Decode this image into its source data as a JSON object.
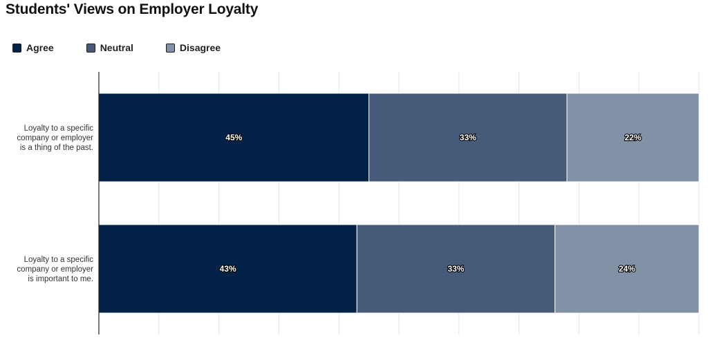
{
  "chart_data": {
    "type": "bar",
    "orientation": "horizontal",
    "stacked": "percent",
    "title": "Students' Views on Employer Loyalty",
    "categories": [
      "Loyalty to a specific company or employer is a thing of the past.",
      "Loyalty to a specific company or employer is important to me."
    ],
    "category_lines": [
      [
        "Loyalty to a specific",
        "company or employer",
        "is a thing of the past."
      ],
      [
        "Loyalty to a specific",
        "company or employer",
        "is important to me."
      ]
    ],
    "series": [
      {
        "name": "Agree",
        "values": [
          45,
          43
        ],
        "labels": [
          "45%",
          "43%"
        ],
        "color": "#022248"
      },
      {
        "name": "Neutral",
        "values": [
          33,
          33
        ],
        "labels": [
          "33%",
          "33%"
        ],
        "color": "#465a7a"
      },
      {
        "name": "Disagree",
        "values": [
          22,
          24
        ],
        "labels": [
          "22%",
          "24%"
        ],
        "color": "#8191a6"
      }
    ],
    "xlim": [
      0,
      100
    ],
    "grid": true,
    "legend_position": "top-left"
  }
}
